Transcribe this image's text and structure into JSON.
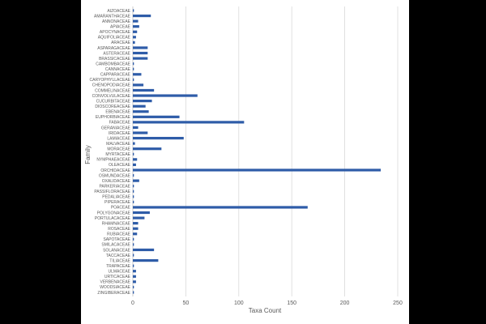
{
  "chart_data": {
    "type": "bar",
    "orientation": "horizontal",
    "xlabel": "Taxa Count",
    "ylabel": "Family",
    "xlim": [
      0,
      250
    ],
    "xticks": [
      0,
      50,
      100,
      150,
      200,
      250
    ],
    "grid": true,
    "bar_color": "#2e5ca8",
    "categories": [
      "AIZOACEAE",
      "AMARANTHACEAE",
      "ANNONACEAE",
      "APIACEAE",
      "APOCYNACEAE",
      "AQUIFOLIACEAE",
      "ARACEAE",
      "ASPARAGACEAE",
      "ASTERACEAE",
      "BRASSICACEAE",
      "CAMBOMBACEAE",
      "CANNACEAE",
      "CAPPARACEAE",
      "CARYOPHYLLACEAE",
      "CHENOPODIACEAE",
      "COMMELINACEAE",
      "CONVOLVULACEAE",
      "CUCURBITACEAE",
      "DIOSCOREACEAE",
      "EBENACEAE",
      "EUPHORBIACEAE",
      "FABACEAE",
      "GERANIACEAE",
      "IRIDACEAE",
      "LAMIACEAE",
      "MALVACEAE",
      "MORACEAE",
      "MYRTACEAE",
      "NYMPHAEACEAE",
      "OLEACEAE",
      "ORCHIDACEAE",
      "OSMUNDACEAE",
      "OXALIDACEAE",
      "PARKERIACEAE",
      "PASSIFLORACEAE",
      "PEDALIACEAE",
      "PIPERACEAE",
      "POACEAE",
      "POLYGONACEAE",
      "PORTULACACEAE",
      "RHAMNACEAE",
      "ROSACEAE",
      "RUBIACEAE",
      "SAPOTACEAE",
      "SMILACACEAE",
      "SOLANACEAE",
      "TACCACEAE",
      "TILIACEAE",
      "TRAPACEAE",
      "ULMACEAE",
      "URTICACEAE",
      "VERBENACEAE",
      "WOODSIACEAE",
      "ZINGIBERACEAE"
    ],
    "values": [
      1,
      17,
      5,
      6,
      4,
      3,
      2,
      14,
      14,
      14,
      1,
      1,
      8,
      1,
      10,
      20,
      61,
      18,
      12,
      15,
      44,
      105,
      5,
      14,
      48,
      2,
      27,
      1,
      4,
      3,
      234,
      1,
      6,
      1,
      1,
      1,
      1,
      165,
      16,
      11,
      5,
      5,
      4,
      1,
      1,
      20,
      1,
      24,
      1,
      3,
      3,
      3,
      1,
      1
    ]
  }
}
